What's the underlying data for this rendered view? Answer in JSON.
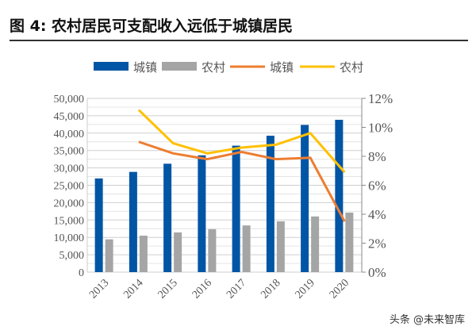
{
  "title": "图 4:  农村居民可支配收入远低于城镇居民",
  "watermark": "头条 @未来智库",
  "chart_data": {
    "type": "bar+line",
    "categories": [
      "2013",
      "2014",
      "2015",
      "2016",
      "2017",
      "2018",
      "2019",
      "2020"
    ],
    "series": [
      {
        "name": "城镇",
        "kind": "bar",
        "axis": "left",
        "color": "#0055a5",
        "values": [
          26955,
          28844,
          31195,
          33616,
          36396,
          39251,
          42359,
          43834
        ]
      },
      {
        "name": "农村",
        "kind": "bar",
        "axis": "left",
        "color": "#a5a5a5",
        "values": [
          9430,
          10489,
          11422,
          12363,
          13432,
          14617,
          16021,
          17131
        ]
      },
      {
        "name": "城镇",
        "kind": "line",
        "axis": "right",
        "color": "#ed7d31",
        "values": [
          null,
          9.0,
          8.2,
          7.8,
          8.3,
          7.8,
          7.9,
          3.5
        ]
      },
      {
        "name": "农村",
        "kind": "line",
        "axis": "right",
        "color": "#ffc000",
        "values": [
          null,
          11.2,
          8.9,
          8.2,
          8.6,
          8.8,
          9.6,
          6.9
        ]
      }
    ],
    "left_ylim": [
      0,
      50000
    ],
    "left_ticks": [
      "0",
      "5,000",
      "10,000",
      "15,000",
      "20,000",
      "25,000",
      "30,000",
      "35,000",
      "40,000",
      "45,000",
      "50,000"
    ],
    "right_ylim": [
      0,
      12
    ],
    "right_ticks": [
      "0%",
      "2%",
      "4%",
      "6%",
      "8%",
      "10%",
      "12%"
    ],
    "grid": true,
    "legend": "top"
  }
}
